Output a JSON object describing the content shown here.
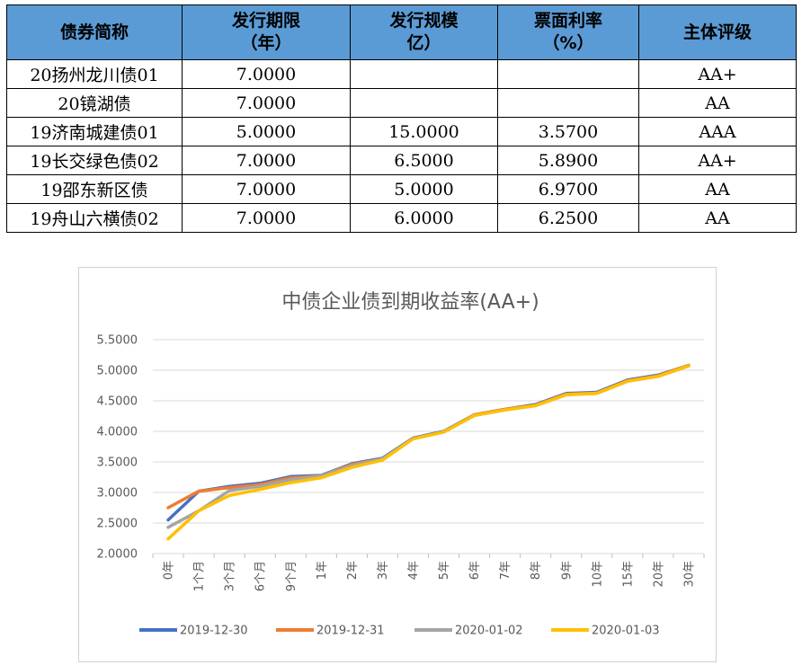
{
  "table": {
    "headers": [
      [
        "债券简称"
      ],
      [
        "发行期限",
        "（年）"
      ],
      [
        "发行规模",
        "亿）"
      ],
      [
        "票面利率",
        "（%）"
      ],
      [
        "主体评级"
      ]
    ],
    "rows": [
      [
        "20扬州龙川债01",
        "7.0000",
        "",
        "",
        "AA+"
      ],
      [
        "20镜湖债",
        "7.0000",
        "",
        "",
        "AA"
      ],
      [
        "19济南城建债01",
        "5.0000",
        "15.0000",
        "3.5700",
        "AAA"
      ],
      [
        "19长交绿色债02",
        "7.0000",
        "6.5000",
        "5.8900",
        "AA+"
      ],
      [
        "19邵东新区债",
        "7.0000",
        "5.0000",
        "6.9700",
        "AA"
      ],
      [
        "19舟山六横债02",
        "7.0000",
        "6.0000",
        "6.2500",
        "AA"
      ]
    ],
    "header_color": "#5B9BD5"
  },
  "chart_data": {
    "type": "line",
    "title": "中债企业债到期收益率(AA+)",
    "xlabel": "",
    "ylabel": "",
    "ylim": [
      2.0,
      5.5
    ],
    "yticks": [
      "2.0000",
      "2.5000",
      "3.0000",
      "3.5000",
      "4.0000",
      "4.5000",
      "5.0000",
      "5.5000"
    ],
    "grid": true,
    "legend_position": "bottom",
    "categories": [
      "0年",
      "1个月",
      "3个月",
      "6个月",
      "9个月",
      "1年",
      "2年",
      "3年",
      "4年",
      "5年",
      "6年",
      "7年",
      "8年",
      "9年",
      "10年",
      "15年",
      "20年",
      "30年"
    ],
    "series": [
      {
        "name": "2019-12-30",
        "color": "#4472C4",
        "values": [
          2.55,
          3.02,
          3.1,
          3.15,
          3.26,
          3.28,
          3.47,
          3.56,
          3.89,
          4.0,
          4.27,
          4.36,
          4.44,
          4.62,
          4.64,
          4.84,
          4.92,
          5.08
        ]
      },
      {
        "name": "2019-12-31",
        "color": "#ED7D31",
        "values": [
          2.75,
          3.02,
          3.08,
          3.13,
          3.24,
          3.27,
          3.46,
          3.55,
          3.88,
          3.99,
          4.27,
          4.36,
          4.43,
          4.61,
          4.63,
          4.83,
          4.91,
          5.08
        ]
      },
      {
        "name": "2020-01-02",
        "color": "#A5A5A5",
        "values": [
          2.43,
          2.7,
          3.03,
          3.1,
          3.21,
          3.27,
          3.44,
          3.55,
          3.88,
          3.99,
          4.26,
          4.35,
          4.42,
          4.6,
          4.62,
          4.82,
          4.9,
          5.07
        ]
      },
      {
        "name": "2020-01-03",
        "color": "#FFC000",
        "values": [
          2.24,
          2.7,
          2.95,
          3.05,
          3.16,
          3.24,
          3.41,
          3.53,
          3.88,
          3.99,
          4.26,
          4.35,
          4.42,
          4.6,
          4.62,
          4.82,
          4.9,
          5.07
        ]
      }
    ]
  }
}
